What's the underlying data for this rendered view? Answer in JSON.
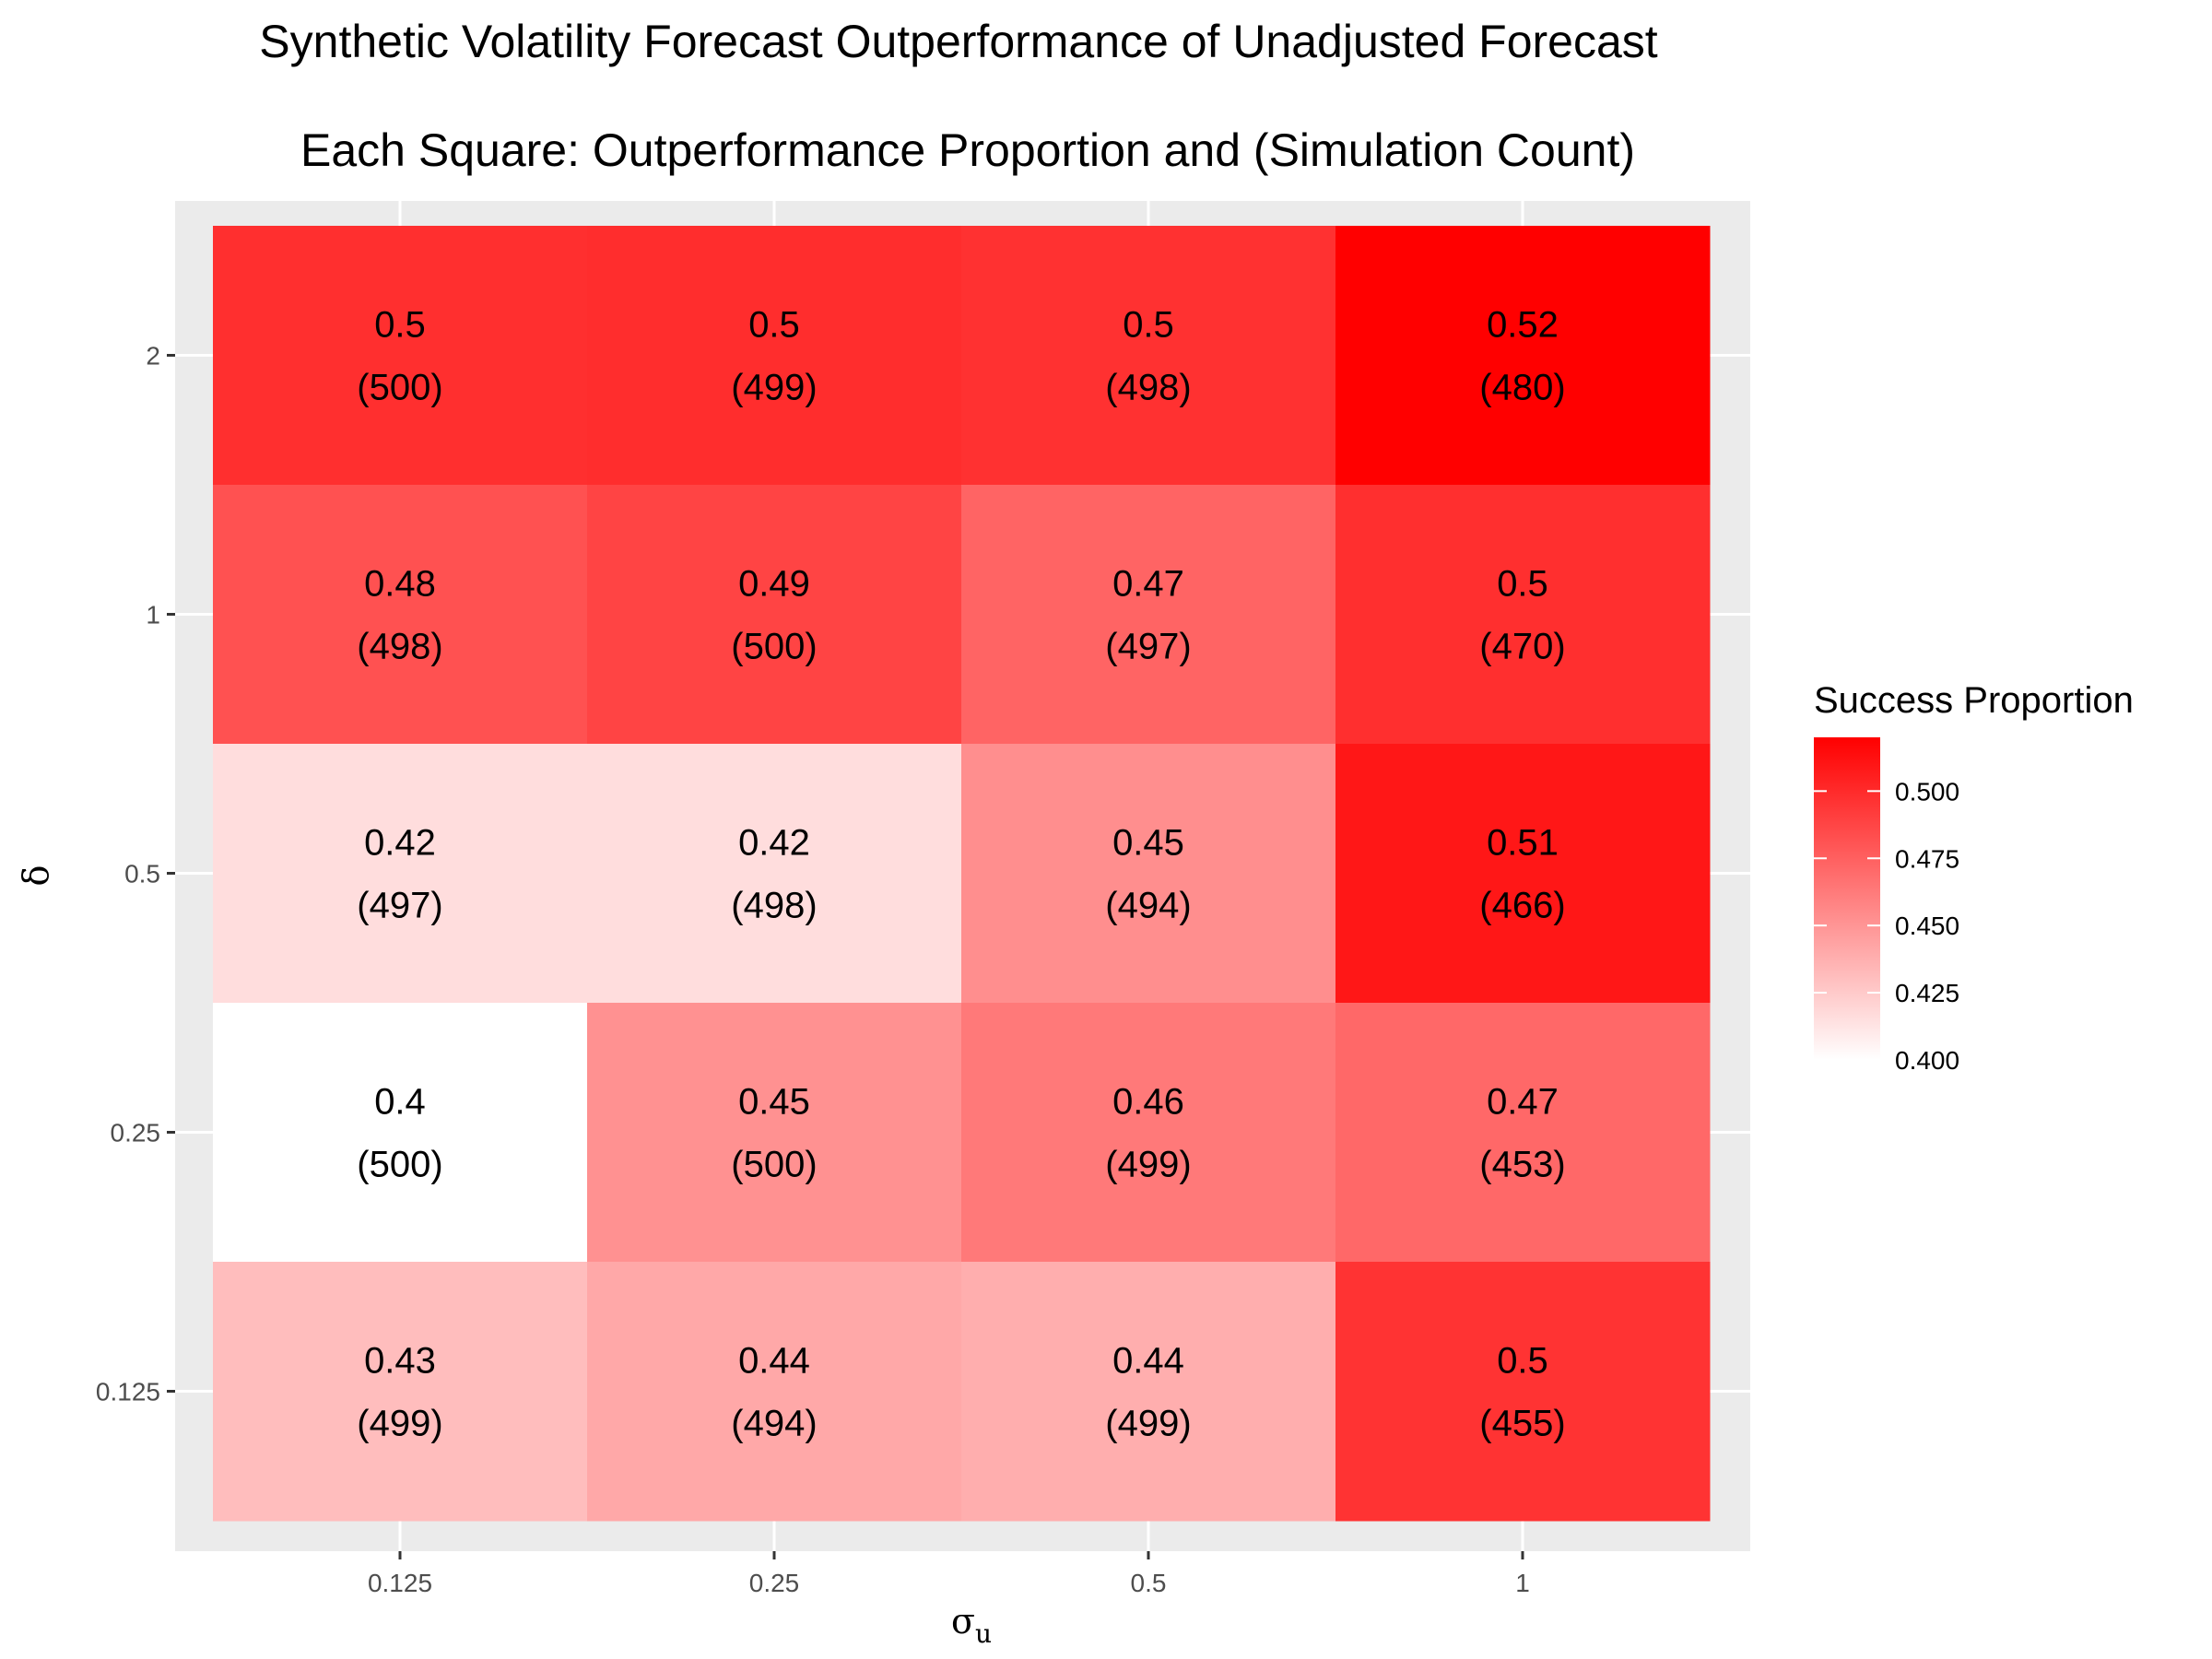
{
  "chart_data": {
    "type": "heatmap",
    "title": "Synthetic Volatility Forecast Outperformance of Unadjusted Forecast",
    "subtitle": "Each Square: Outperformance Proportion and (Simulation Count)",
    "xlabel": "σ",
    "xlabel_subscript": "u",
    "ylabel": "δ",
    "x_categories": [
      "0.125",
      "0.25",
      "0.5",
      "1"
    ],
    "y_categories": [
      "0.125",
      "0.25",
      "0.5",
      "1",
      "2"
    ],
    "cells": [
      {
        "x": "0.125",
        "y": "2",
        "proportion": 0.5,
        "proportion_label": "0.5",
        "count_label": "(500)",
        "fill": 0.498
      },
      {
        "x": "0.25",
        "y": "2",
        "proportion": 0.5,
        "proportion_label": "0.5",
        "count_label": "(499)",
        "fill": 0.499
      },
      {
        "x": "0.5",
        "y": "2",
        "proportion": 0.5,
        "proportion_label": "0.5",
        "count_label": "(498)",
        "fill": 0.497
      },
      {
        "x": "1",
        "y": "2",
        "proportion": 0.52,
        "proportion_label": "0.52",
        "count_label": "(480)",
        "fill": 0.521
      },
      {
        "x": "0.125",
        "y": "1",
        "proportion": 0.48,
        "proportion_label": "0.48",
        "count_label": "(498)",
        "fill": 0.482
      },
      {
        "x": "0.25",
        "y": "1",
        "proportion": 0.49,
        "proportion_label": "0.49",
        "count_label": "(500)",
        "fill": 0.488
      },
      {
        "x": "0.5",
        "y": "1",
        "proportion": 0.47,
        "proportion_label": "0.47",
        "count_label": "(497)",
        "fill": 0.473
      },
      {
        "x": "1",
        "y": "1",
        "proportion": 0.5,
        "proportion_label": "0.5",
        "count_label": "(470)",
        "fill": 0.498
      },
      {
        "x": "0.125",
        "y": "0.5",
        "proportion": 0.42,
        "proportion_label": "0.42",
        "count_label": "(497)",
        "fill": 0.416
      },
      {
        "x": "0.25",
        "y": "0.5",
        "proportion": 0.42,
        "proportion_label": "0.42",
        "count_label": "(498)",
        "fill": 0.416
      },
      {
        "x": "0.5",
        "y": "0.5",
        "proportion": 0.45,
        "proportion_label": "0.45",
        "count_label": "(494)",
        "fill": 0.453
      },
      {
        "x": "1",
        "y": "0.5",
        "proportion": 0.51,
        "proportion_label": "0.51",
        "count_label": "(466)",
        "fill": 0.509
      },
      {
        "x": "0.125",
        "y": "0.25",
        "proportion": 0.4,
        "proportion_label": "0.4",
        "count_label": "(500)",
        "fill": 0.4
      },
      {
        "x": "0.25",
        "y": "0.25",
        "proportion": 0.45,
        "proportion_label": "0.45",
        "count_label": "(500)",
        "fill": 0.452
      },
      {
        "x": "0.5",
        "y": "0.25",
        "proportion": 0.46,
        "proportion_label": "0.46",
        "count_label": "(499)",
        "fill": 0.463
      },
      {
        "x": "1",
        "y": "0.25",
        "proportion": 0.47,
        "proportion_label": "0.47",
        "count_label": "(453)",
        "fill": 0.471
      },
      {
        "x": "0.125",
        "y": "0.125",
        "proportion": 0.43,
        "proportion_label": "0.43",
        "count_label": "(499)",
        "fill": 0.431
      },
      {
        "x": "0.25",
        "y": "0.125",
        "proportion": 0.44,
        "proportion_label": "0.44",
        "count_label": "(494)",
        "fill": 0.441
      },
      {
        "x": "0.5",
        "y": "0.125",
        "proportion": 0.44,
        "proportion_label": "0.44",
        "count_label": "(499)",
        "fill": 0.438
      },
      {
        "x": "1",
        "y": "0.125",
        "proportion": 0.5,
        "proportion_label": "0.5",
        "count_label": "(455)",
        "fill": 0.496
      }
    ],
    "legend": {
      "title": "Success Proportion",
      "position": "right",
      "min": 0.4,
      "max": 0.52,
      "breaks": [
        0.4,
        0.425,
        0.45,
        0.475,
        0.5
      ],
      "break_labels": [
        "0.400",
        "0.425",
        "0.450",
        "0.475",
        "0.500"
      ],
      "low_color": "#ffffff",
      "high_color": "#ff0000"
    },
    "panel_background": "#ebebeb",
    "grid": true
  }
}
